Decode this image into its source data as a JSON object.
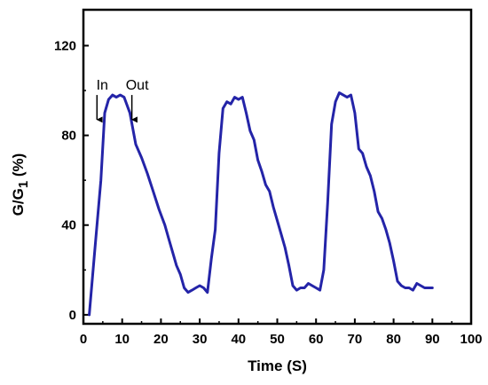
{
  "chart_data": {
    "type": "line",
    "xlabel": "Time (S)",
    "ylabel": {
      "main": "G/G",
      "sub": "1",
      "suffix": " (%)"
    },
    "xlim": [
      0,
      100
    ],
    "ylim": [
      -4,
      136
    ],
    "xticks": [
      0,
      10,
      20,
      30,
      40,
      50,
      60,
      70,
      80,
      90,
      100
    ],
    "yticks": [
      0,
      40,
      80,
      120
    ],
    "grid": false,
    "series_color": "#2424a8",
    "series": [
      {
        "x": [
          1.5,
          3,
          4.5,
          5.5,
          6.5,
          7.5,
          8.5,
          9.5,
          10.5,
          12,
          13.5,
          15,
          16.5,
          18,
          19.5,
          21,
          22,
          23,
          24,
          25,
          26,
          27,
          28,
          29,
          30,
          31,
          32,
          33,
          34,
          35,
          36,
          37,
          38,
          39,
          40,
          41,
          42,
          43,
          44,
          45,
          46,
          47,
          48,
          49,
          50,
          51,
          52,
          53,
          54,
          55,
          56,
          57,
          58,
          59,
          60,
          61,
          62,
          63,
          64,
          65,
          66,
          67,
          68,
          69,
          70,
          71,
          72,
          73,
          74,
          75,
          76,
          77,
          78,
          79,
          80,
          81,
          82,
          83,
          84,
          85,
          86,
          87,
          88,
          89,
          90
        ],
        "y": [
          0,
          30,
          60,
          90,
          96,
          98,
          97,
          98,
          97,
          90,
          76,
          70,
          63,
          55,
          47,
          40,
          34,
          28,
          22,
          18,
          12,
          10,
          11,
          12,
          13,
          12,
          10,
          25,
          38,
          72,
          92,
          95,
          94,
          97,
          96,
          97,
          90,
          82,
          78,
          69,
          64,
          58,
          55,
          48,
          42,
          36,
          30,
          22,
          13,
          11,
          12,
          12,
          14,
          13,
          12,
          11,
          20,
          50,
          85,
          95,
          99,
          98,
          97,
          98,
          90,
          74,
          72,
          66,
          62,
          55,
          46,
          43,
          38,
          32,
          24,
          15,
          13,
          12,
          12,
          11,
          14,
          13,
          12,
          12,
          12
        ]
      }
    ],
    "annotations": [
      {
        "label": "In",
        "arrow_x": 3.5,
        "arrow_y_top": 98,
        "arrow_y_bottom": 87
      },
      {
        "label": "Out",
        "arrow_x": 12.5,
        "arrow_y_top": 98,
        "arrow_y_bottom": 87
      }
    ]
  }
}
